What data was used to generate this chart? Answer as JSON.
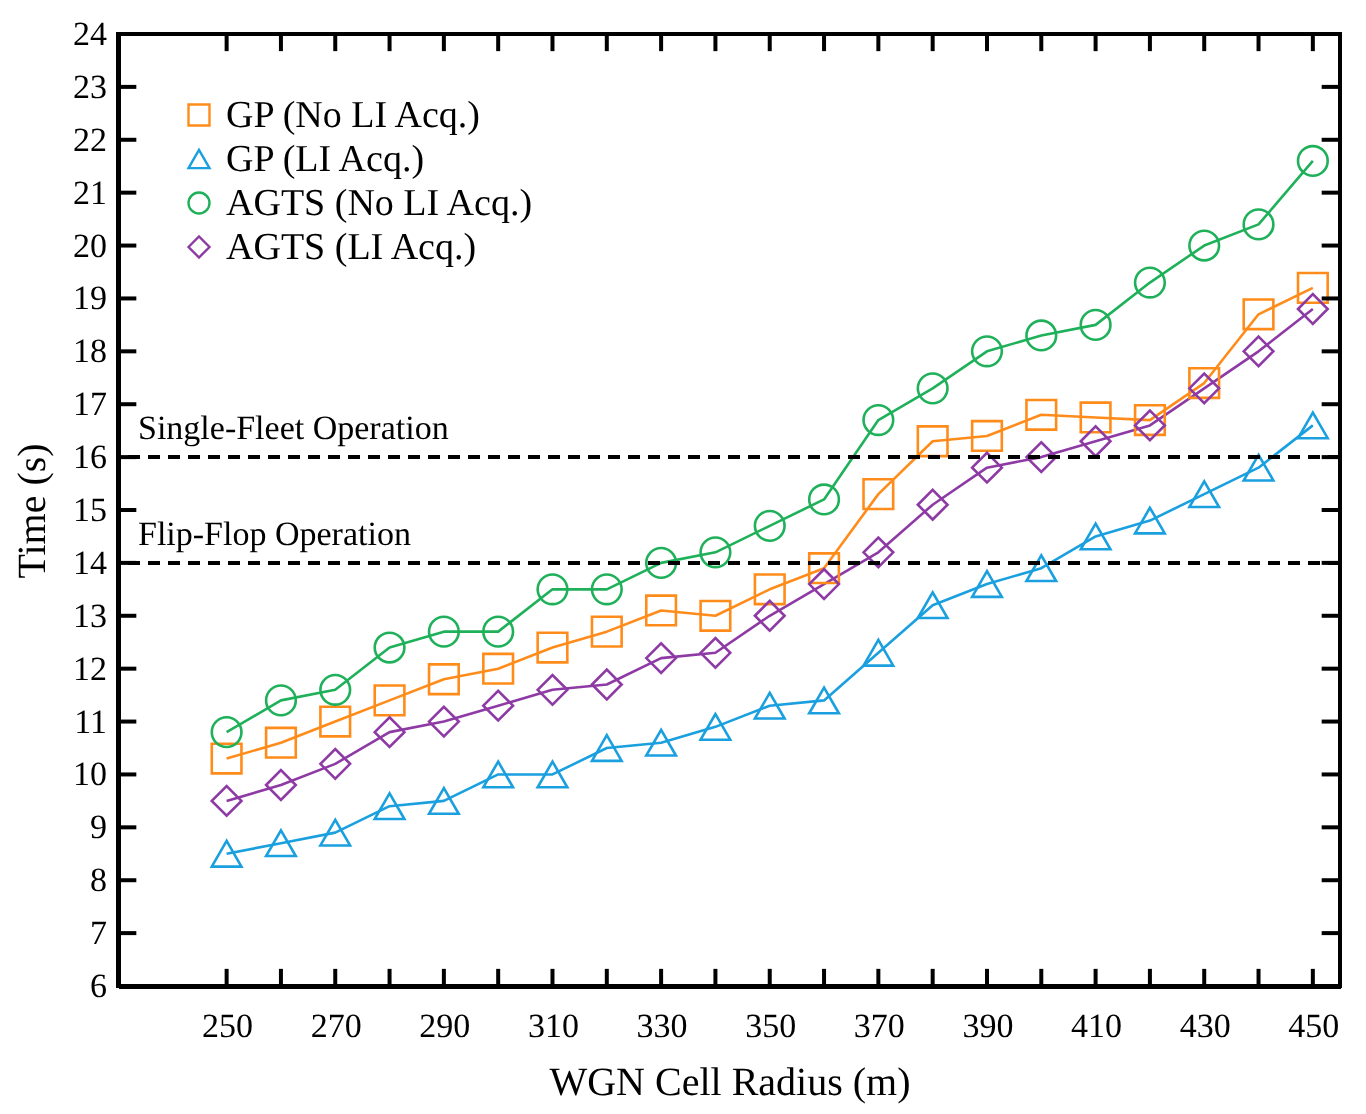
{
  "chart_data": {
    "type": "line",
    "xlabel": "WGN Cell Radius (m)",
    "ylabel": "Time (s)",
    "x": [
      250,
      260,
      270,
      280,
      290,
      300,
      310,
      320,
      330,
      340,
      350,
      360,
      370,
      380,
      390,
      400,
      410,
      420,
      430,
      440,
      450
    ],
    "series": [
      {
        "name": "GP (No LI Acq.)",
        "color": "#ff8c1a",
        "marker": "square",
        "values": [
          10.3,
          10.6,
          11.0,
          11.4,
          11.8,
          12.0,
          12.4,
          12.7,
          13.1,
          13.0,
          13.5,
          13.9,
          15.3,
          16.3,
          16.4,
          16.8,
          16.75,
          16.7,
          17.4,
          18.7,
          19.2
        ]
      },
      {
        "name": "GP (LI Acq.)",
        "color": "#1a9fdf",
        "marker": "triangle",
        "values": [
          8.5,
          8.7,
          8.9,
          9.4,
          9.5,
          10.0,
          10.0,
          10.5,
          10.6,
          10.9,
          11.3,
          11.4,
          12.3,
          13.2,
          13.6,
          13.9,
          14.5,
          14.8,
          15.3,
          15.8,
          16.6
        ]
      },
      {
        "name": "AGTS (No LI Acq.)",
        "color": "#1fb05a",
        "marker": "circle",
        "values": [
          10.8,
          11.4,
          11.6,
          12.4,
          12.7,
          12.7,
          13.5,
          13.5,
          14.0,
          14.2,
          14.7,
          15.2,
          16.7,
          17.3,
          18.0,
          18.3,
          18.5,
          19.3,
          20.0,
          20.4,
          21.6
        ]
      },
      {
        "name": "AGTS (LI Acq.)",
        "color": "#8e3aa5",
        "marker": "diamond",
        "values": [
          9.5,
          9.8,
          10.2,
          10.8,
          11.0,
          11.3,
          11.6,
          11.7,
          12.2,
          12.3,
          13.0,
          13.6,
          14.2,
          15.1,
          15.8,
          16.0,
          16.3,
          16.6,
          17.3,
          18.0,
          18.8
        ]
      }
    ],
    "xlim": [
      230,
      455
    ],
    "xticks": [
      250,
      {
        "value": 260,
        "label": null
      },
      270,
      {
        "value": 280,
        "label": null
      },
      290,
      {
        "value": 300,
        "label": null
      },
      310,
      {
        "value": 320,
        "label": null
      },
      330,
      {
        "value": 340,
        "label": null
      },
      350,
      {
        "value": 360,
        "label": null
      },
      370,
      {
        "value": 380,
        "label": null
      },
      390,
      {
        "value": 400,
        "label": null
      },
      410,
      {
        "value": 420,
        "label": null
      },
      430,
      {
        "value": 440,
        "label": null
      },
      450
    ],
    "ylim": [
      6,
      24
    ],
    "yticks": [
      6,
      7,
      8,
      9,
      10,
      11,
      12,
      13,
      14,
      15,
      16,
      17,
      18,
      19,
      20,
      21,
      22,
      23,
      24
    ],
    "ref_lines": [
      {
        "axis": "y",
        "value": 16,
        "label": "Single-Fleet Operation",
        "color": "#000000",
        "line_style": "dashed"
      },
      {
        "axis": "y",
        "value": 14,
        "label": "Flip-Flop Operation",
        "color": "#000000",
        "line_style": "dashed"
      }
    ],
    "grid": false,
    "legend": "top left"
  }
}
